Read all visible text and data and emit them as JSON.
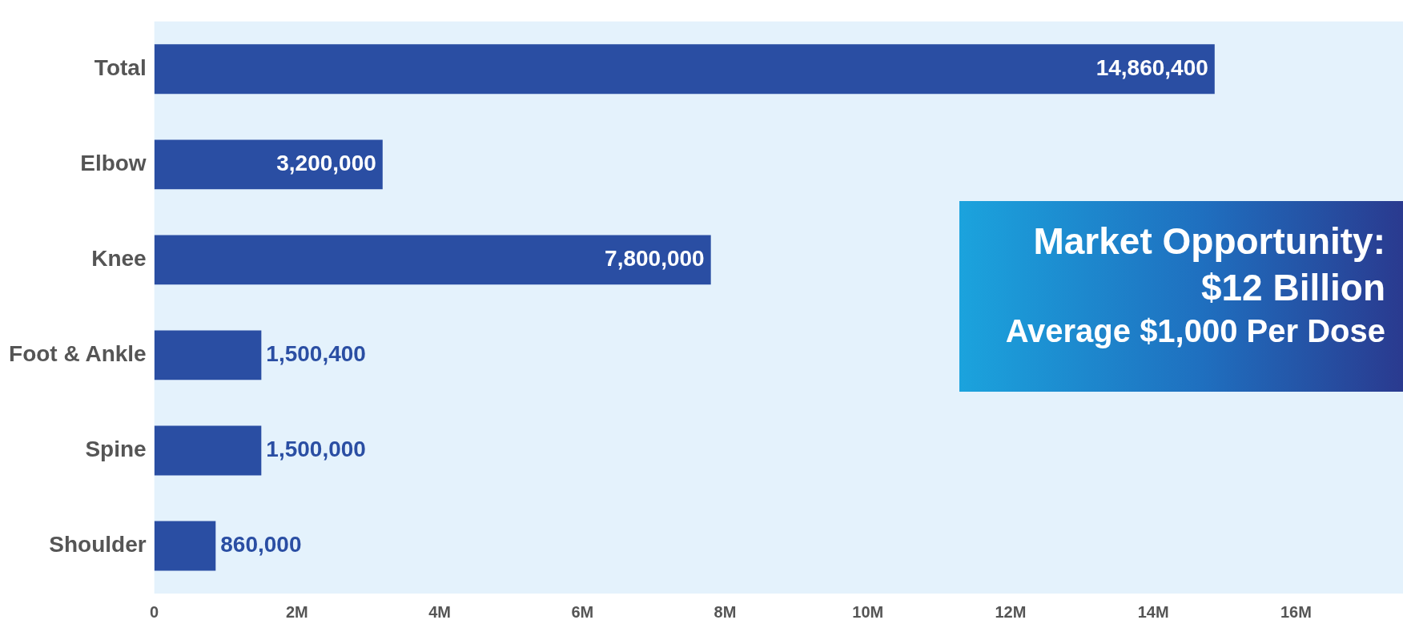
{
  "chart_data": {
    "type": "bar",
    "orientation": "horizontal",
    "categories": [
      "Total",
      "Elbow",
      "Knee",
      "Foot & Ankle",
      "Spine",
      "Shoulder"
    ],
    "values": [
      14860400,
      3200000,
      7800000,
      1500400,
      1500000,
      860000
    ],
    "value_labels": [
      "14,860,400",
      "3,200,000",
      "7,800,000",
      "1,500,400",
      "1,500,000",
      "860,000"
    ],
    "color": "#2a4ea3",
    "xlim": [
      0,
      17500000
    ],
    "xticks": [
      {
        "value": 0,
        "label": "0"
      },
      {
        "value": 2000000,
        "label": "2M"
      },
      {
        "value": 4000000,
        "label": "4M"
      },
      {
        "value": 6000000,
        "label": "6M"
      },
      {
        "value": 8000000,
        "label": "8M"
      },
      {
        "value": 10000000,
        "label": "10M"
      },
      {
        "value": 12000000,
        "label": "12M"
      },
      {
        "value": 14000000,
        "label": "14M"
      },
      {
        "value": 16000000,
        "label": "16M"
      }
    ],
    "grid": false,
    "legend": false,
    "annotations": [
      "Market Opportunity:",
      "$12 Billion",
      "Average $1,000 Per Dose"
    ]
  }
}
